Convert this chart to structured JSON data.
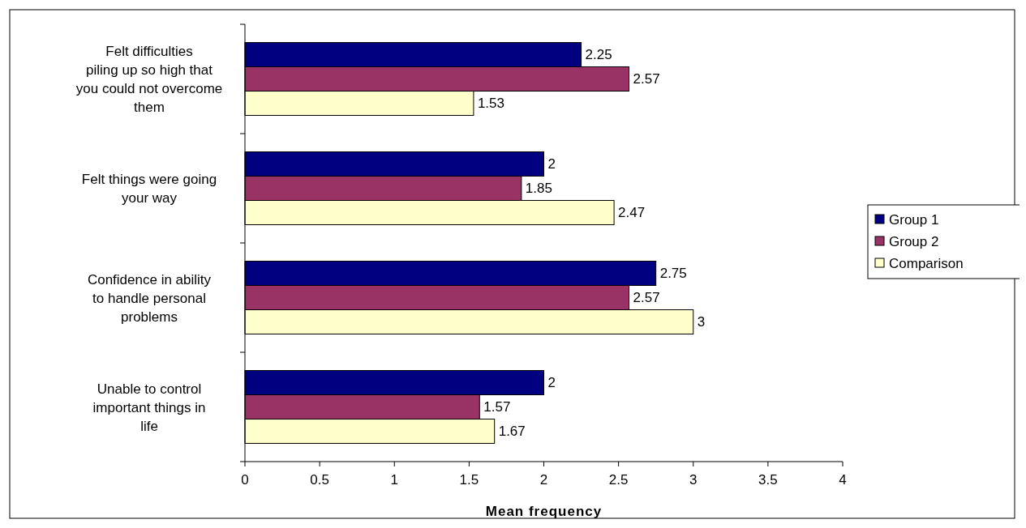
{
  "chart_data": {
    "type": "bar",
    "orientation": "horizontal",
    "xlabel": "Mean frequency",
    "categories": [
      "Felt difficulties piling up so high that you could not overcome them",
      "Felt things were going your way",
      "Confidence in ability to handle personal problems",
      "Unable to control important things in life"
    ],
    "series": [
      {
        "name": "Group 1",
        "color": "#000080",
        "values": [
          2.25,
          2,
          2.75,
          2
        ]
      },
      {
        "name": "Group 2",
        "color": "#993366",
        "values": [
          2.57,
          1.85,
          2.57,
          1.57
        ]
      },
      {
        "name": "Comparison",
        "color": "#ffffcc",
        "values": [
          1.53,
          2.47,
          3,
          1.67
        ]
      }
    ],
    "xlim": [
      0,
      4
    ],
    "xticks": [
      0,
      0.5,
      1,
      1.5,
      2,
      2.5,
      3,
      3.5,
      4
    ],
    "grid": false,
    "legend": "right",
    "data_labels": true
  }
}
